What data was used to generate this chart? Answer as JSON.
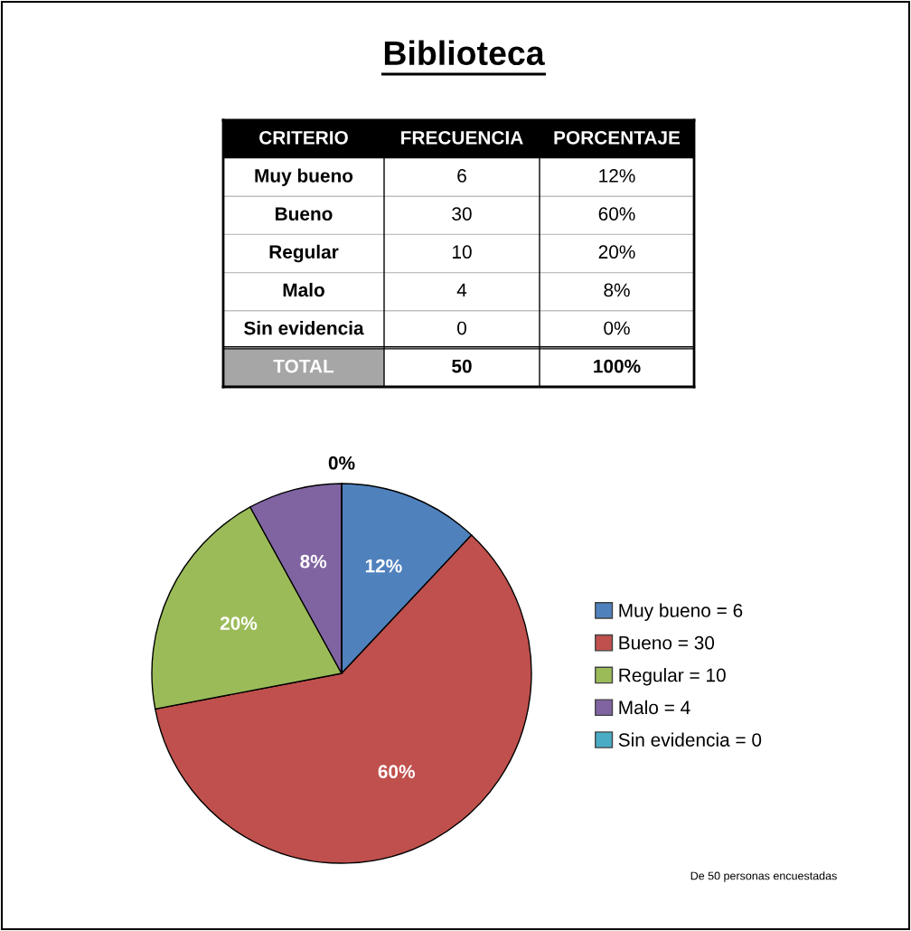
{
  "chart_data": [
    {
      "type": "other",
      "title": "Biblioteca",
      "annotations": [
        "CRITERIO",
        "FRECUENCIA",
        "PORCENTAJE",
        "Muy bueno",
        "6",
        "12%",
        "Bueno",
        "30",
        "60%",
        "Regular",
        "10",
        "20%",
        "Malo",
        "4",
        "8%",
        "Sin evidencia",
        "0",
        "0%",
        "TOTAL",
        "50",
        "100%"
      ]
    },
    {
      "type": "pie",
      "categories": [
        "Muy bueno = 6",
        "Bueno = 30",
        "Regular = 10",
        "Malo = 4",
        "Sin evidencia = 0"
      ],
      "values": [
        12,
        60,
        20,
        8,
        0
      ],
      "value_labels": [
        "12%",
        "60%",
        "20%",
        "8%",
        "0%"
      ],
      "colors": [
        "#4f81bd",
        "#c0504d",
        "#9bbb59",
        "#8064a2",
        "#4bacc6"
      ],
      "legend": "right",
      "annotations": [
        "De 50 personas encuestadas"
      ]
    }
  ]
}
